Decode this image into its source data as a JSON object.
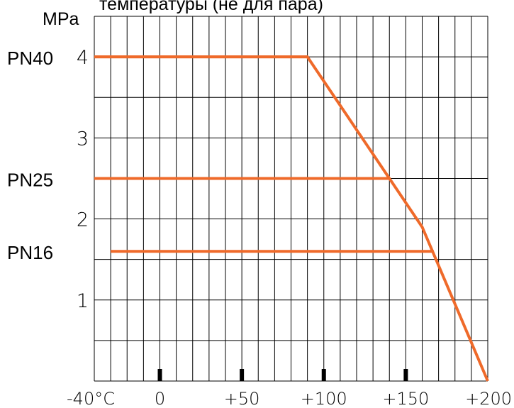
{
  "chart_data": {
    "type": "line",
    "title": "температуры (не для пара)",
    "ylabel": "MPa",
    "xlabel": "",
    "xlim": [
      -40,
      200
    ],
    "ylim": [
      0,
      4.5
    ],
    "x_grid_step": 10,
    "y_grid_step": 0.5,
    "grid": true,
    "x_ticks": [
      {
        "value": -40,
        "label": "-40°C"
      },
      {
        "value": 0,
        "label": "0"
      },
      {
        "value": 50,
        "label": "+50"
      },
      {
        "value": 100,
        "label": "+100"
      },
      {
        "value": 150,
        "label": "+150"
      },
      {
        "value": 200,
        "label": "+200"
      }
    ],
    "x_tick_marks": [
      0,
      50,
      100,
      150
    ],
    "y_ticks": [
      {
        "value": 1,
        "label": "1"
      },
      {
        "value": 2,
        "label": "2"
      },
      {
        "value": 3,
        "label": "3"
      },
      {
        "value": 4,
        "label": "4"
      }
    ],
    "line_color": "#ef6a2a",
    "series": [
      {
        "name": "",
        "x": [
          -40,
          90,
          140,
          160,
          200
        ],
        "y": [
          4,
          4,
          2.5,
          1.9,
          0
        ]
      },
      {
        "name": "PN40",
        "x": [
          -40,
          90
        ],
        "y": [
          4,
          4
        ]
      },
      {
        "name": "PN25",
        "x": [
          -40,
          140
        ],
        "y": [
          2.5,
          2.5
        ]
      },
      {
        "name": "PN16",
        "x": [
          -30,
          167
        ],
        "y": [
          1.6,
          1.6
        ]
      }
    ],
    "annotations": [
      {
        "text": "PN40",
        "y": 4
      },
      {
        "text": "PN25",
        "y": 2.5
      },
      {
        "text": "PN16",
        "y": 1.6
      }
    ]
  }
}
